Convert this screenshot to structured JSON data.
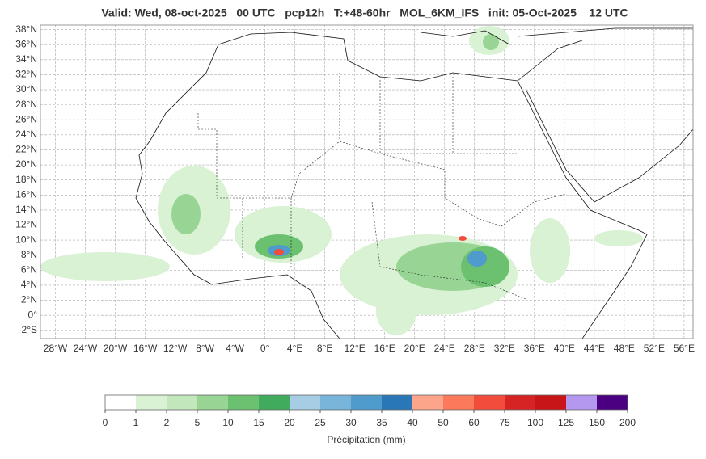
{
  "map": {
    "title": "Valid: Wed, 08-oct-2025   00 UTC   pcp12h   T:+48-60hr   MOL_6KM_IFS   init: 05-Oct-2025    12 UTC",
    "lon_range": [
      -30,
      57.2
    ],
    "lat_range": [
      -3.1,
      38.6
    ],
    "lat_ticks": [
      {
        "value": 38,
        "label": "38°N"
      },
      {
        "value": 36,
        "label": "36°N"
      },
      {
        "value": 34,
        "label": "34°N"
      },
      {
        "value": 32,
        "label": "32°N"
      },
      {
        "value": 30,
        "label": "30°N"
      },
      {
        "value": 28,
        "label": "28°N"
      },
      {
        "value": 26,
        "label": "26°N"
      },
      {
        "value": 24,
        "label": "24°N"
      },
      {
        "value": 22,
        "label": "22°N"
      },
      {
        "value": 20,
        "label": "20°N"
      },
      {
        "value": 18,
        "label": "18°N"
      },
      {
        "value": 16,
        "label": "16°N"
      },
      {
        "value": 14,
        "label": "14°N"
      },
      {
        "value": 12,
        "label": "12°N"
      },
      {
        "value": 10,
        "label": "10°N"
      },
      {
        "value": 8,
        "label": "8°N"
      },
      {
        "value": 6,
        "label": "6°N"
      },
      {
        "value": 4,
        "label": "4°N"
      },
      {
        "value": 2,
        "label": "2°N"
      },
      {
        "value": 0,
        "label": "0°"
      },
      {
        "value": -2,
        "label": "2°S"
      }
    ],
    "lon_ticks": [
      {
        "value": -28,
        "label": "28°W"
      },
      {
        "value": -24,
        "label": "24°W"
      },
      {
        "value": -20,
        "label": "20°W"
      },
      {
        "value": -16,
        "label": "16°W"
      },
      {
        "value": -12,
        "label": "12°W"
      },
      {
        "value": -8,
        "label": "8°W"
      },
      {
        "value": -4,
        "label": "4°W"
      },
      {
        "value": 0,
        "label": "0°"
      },
      {
        "value": 4,
        "label": "4°E"
      },
      {
        "value": 8,
        "label": "8°E"
      },
      {
        "value": 12,
        "label": "12°E"
      },
      {
        "value": 16,
        "label": "16°E"
      },
      {
        "value": 20,
        "label": "20°E"
      },
      {
        "value": 24,
        "label": "24°E"
      },
      {
        "value": 28,
        "label": "28°E"
      },
      {
        "value": 32,
        "label": "32°E"
      },
      {
        "value": 36,
        "label": "36°E"
      },
      {
        "value": 40,
        "label": "40°E"
      },
      {
        "value": 44,
        "label": "44°E"
      },
      {
        "value": 48,
        "label": "48°E"
      },
      {
        "value": 52,
        "label": "52°E"
      },
      {
        "value": 56,
        "label": "56°E"
      }
    ],
    "grid": true,
    "colorbar": {
      "label": "Précipitation (mm)",
      "bounds": [
        0,
        1,
        2,
        5,
        10,
        15,
        20,
        25,
        30,
        35,
        40,
        50,
        60,
        75,
        100,
        125,
        150,
        200
      ],
      "colors": [
        "#ffffff",
        "#d9f2d4",
        "#c3e7bd",
        "#98d594",
        "#6cc171",
        "#41ab5d",
        "#a6cde4",
        "#79b5da",
        "#4f9bcb",
        "#2a77b8",
        "#fca58a",
        "#fb7a5c",
        "#f14c3c",
        "#d62323",
        "#c81618",
        "#b497ee",
        "#4b0082"
      ]
    }
  }
}
